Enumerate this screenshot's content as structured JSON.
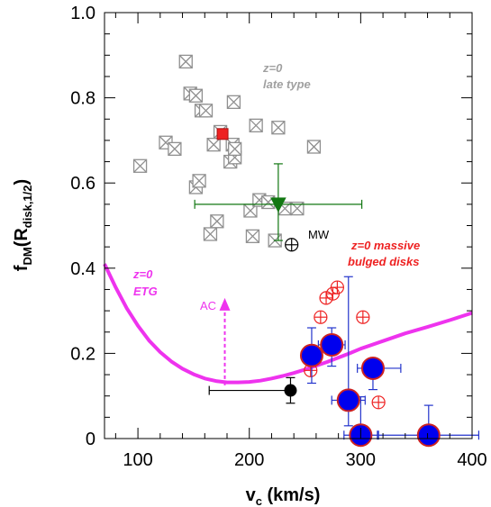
{
  "chart_data": {
    "type": "scatter",
    "xlabel": "v",
    "xlabel_sub": "c",
    "xlabel_unit": " (km/s)",
    "ylabel": "f",
    "ylabel_sub": "DM",
    "ylabel_mid": "(R",
    "ylabel_sub2": "disk,1/2",
    "ylabel_end": ")",
    "xlim": [
      70,
      400
    ],
    "ylim": [
      0,
      1.0
    ],
    "xticks": [
      100,
      200,
      300,
      400
    ],
    "yticks": [
      0,
      0.2,
      0.4,
      0.6,
      0.8,
      1.0
    ],
    "ytick_labels": [
      "0",
      "0.2",
      "0.4",
      "0.6",
      "0.8",
      "1.0"
    ],
    "annotations": {
      "late_type_line1": "z=0",
      "late_type_line2": "late type",
      "massive_line1": "z=0 massive",
      "massive_line2": "bulged disks",
      "etg_line1": "z=0",
      "etg_line2": "ETG",
      "ac": "AC",
      "mw": "MW"
    },
    "colors": {
      "late_type": "#909090",
      "etg_curve": "#ee33ee",
      "massive_open": "#ee2222",
      "blue_fill": "#0000ee",
      "blue_edge": "#cc2222",
      "blue_err": "#2233cc",
      "green": "#117711",
      "red_square": "#ee2222"
    },
    "series": [
      {
        "name": "z=0 late type",
        "marker": "boxed-x",
        "points": [
          [
            102,
            0.64
          ],
          [
            125,
            0.695
          ],
          [
            133,
            0.68
          ],
          [
            143,
            0.885
          ],
          [
            147,
            0.81
          ],
          [
            152,
            0.805
          ],
          [
            152,
            0.59
          ],
          [
            155,
            0.605
          ],
          [
            157,
            0.77
          ],
          [
            161,
            0.77
          ],
          [
            165,
            0.48
          ],
          [
            168,
            0.69
          ],
          [
            171,
            0.51
          ],
          [
            174,
            0.72
          ],
          [
            183,
            0.65
          ],
          [
            185,
            0.69
          ],
          [
            186,
            0.79
          ],
          [
            187,
            0.66
          ],
          [
            187,
            0.68
          ],
          [
            201,
            0.535
          ],
          [
            203,
            0.475
          ],
          [
            206,
            0.735
          ],
          [
            209,
            0.56
          ],
          [
            217,
            0.555
          ],
          [
            223,
            0.465
          ],
          [
            226,
            0.73
          ],
          [
            232,
            0.54
          ],
          [
            243,
            0.54
          ],
          [
            258,
            0.685
          ]
        ]
      },
      {
        "name": "z=0 massive bulged disks",
        "marker": "open-circle-cross",
        "points": [
          [
            255,
            0.16
          ],
          [
            264,
            0.285
          ],
          [
            269,
            0.33
          ],
          [
            275,
            0.34
          ],
          [
            279,
            0.355
          ],
          [
            302,
            0.285
          ],
          [
            316,
            0.085
          ]
        ]
      },
      {
        "name": "blue large",
        "marker": "filled-circle",
        "points": [
          {
            "x": 256,
            "y": 0.195,
            "xerr": [
              8,
              8
            ],
            "yerr": [
              0.065,
              0.065
            ]
          },
          {
            "x": 274,
            "y": 0.22,
            "xerr": [
              12,
              12
            ],
            "yerr": [
              0.05,
              0.04
            ]
          },
          {
            "x": 311,
            "y": 0.165,
            "xerr": [
              14,
              25
            ],
            "yerr": [
              0.05,
              0.02
            ]
          },
          {
            "x": 289,
            "y": 0.09,
            "xerr": [
              15,
              15
            ],
            "yerr": [
              0.06,
              0.29
            ]
          },
          {
            "x": 300,
            "y": 0.008,
            "xerr": [
              15,
              15
            ],
            "yerr": [
              0.0,
              0.09
            ]
          },
          {
            "x": 361,
            "y": 0.008,
            "xerr": [
              45,
              45
            ],
            "yerr": [
              0.0,
              0.07
            ]
          }
        ]
      },
      {
        "name": "green",
        "marker": "triangle-down",
        "points": [
          {
            "x": 226,
            "y": 0.55,
            "xerr": [
              75,
              75
            ],
            "yerr": [
              0.085,
              0.095
            ]
          }
        ]
      },
      {
        "name": "black",
        "marker": "filled-circle",
        "points": [
          {
            "x": 237,
            "y": 0.113,
            "xerr": [
              73,
              0
            ],
            "yerr": [
              0.03,
              0.03
            ]
          }
        ]
      },
      {
        "name": "MW",
        "marker": "open-circle-cross",
        "points": [
          [
            238,
            0.455
          ]
        ]
      },
      {
        "name": "red square",
        "marker": "filled-square",
        "points": [
          [
            176,
            0.715
          ]
        ]
      },
      {
        "name": "AC arrow",
        "marker": "arrow-up-dashed",
        "points": [
          {
            "x": 178,
            "y_from": 0.125,
            "y_to": 0.33
          }
        ]
      }
    ],
    "etg_curve": {
      "x": [
        70,
        80,
        90,
        100,
        110,
        120,
        130,
        140,
        150,
        160,
        170,
        180,
        190,
        200,
        210,
        220,
        230,
        240,
        250,
        260,
        270,
        280,
        290,
        300,
        320,
        340,
        360,
        380,
        400
      ],
      "y": [
        0.41,
        0.355,
        0.306,
        0.265,
        0.23,
        0.203,
        0.181,
        0.164,
        0.151,
        0.141,
        0.135,
        0.132,
        0.132,
        0.133,
        0.136,
        0.141,
        0.147,
        0.154,
        0.162,
        0.171,
        0.18,
        0.19,
        0.2,
        0.211,
        0.229,
        0.247,
        0.262,
        0.278,
        0.295
      ]
    }
  }
}
